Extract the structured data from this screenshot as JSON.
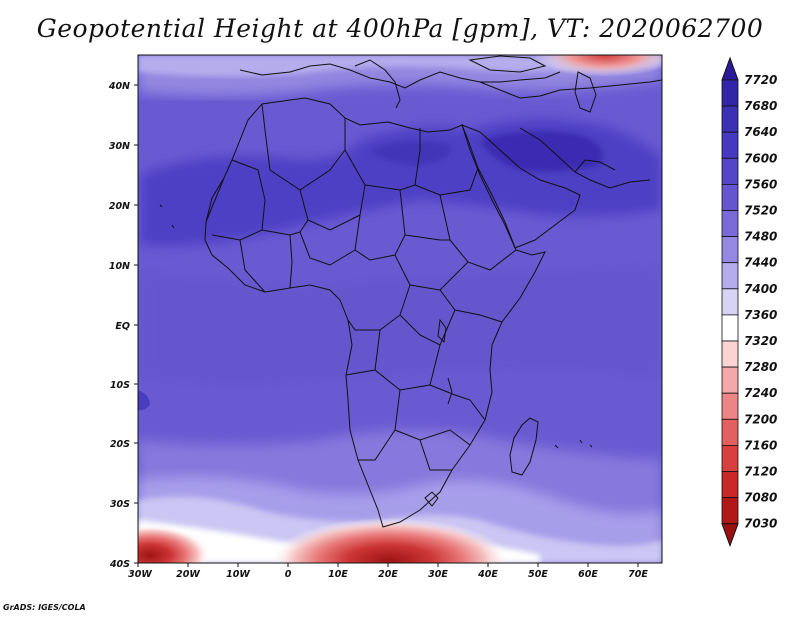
{
  "title": "Geopotential Height at 400hPa [gpm], VT: 2020062700",
  "credit": "GrADS: IGES/COLA",
  "axes": {
    "lat_labels": [
      "40N",
      "30N",
      "20N",
      "10N",
      "EQ",
      "10S",
      "20S",
      "30S",
      "40S"
    ],
    "lon_labels": [
      "30W",
      "20W",
      "10W",
      "0",
      "10E",
      "20E",
      "30E",
      "40E",
      "50E",
      "60E",
      "70E"
    ]
  },
  "map": {
    "lon_range": [
      -30,
      75
    ],
    "lat_range": [
      -40,
      45
    ],
    "variable": "Geopotential Height",
    "level": "400hPa",
    "units": "gpm",
    "valid_time": "2020062700"
  },
  "colorbar": {
    "levels": [
      "7720",
      "7680",
      "7640",
      "7600",
      "7560",
      "7520",
      "7480",
      "7440",
      "7400",
      "7360",
      "7320",
      "7280",
      "7240",
      "7200",
      "7160",
      "7120",
      "7080",
      "7030"
    ],
    "colors": [
      "#2a1a9a",
      "#3325a8",
      "#3c30b5",
      "#4638c0",
      "#5546c8",
      "#6655d0",
      "#7a6ad8",
      "#9488e2",
      "#b4acec",
      "#d7d3f5",
      "#ffffff",
      "#fbd3d3",
      "#f4a9a9",
      "#ec8585",
      "#e26060",
      "#d84040",
      "#c92828",
      "#b01818",
      "#9a1010"
    ]
  }
}
